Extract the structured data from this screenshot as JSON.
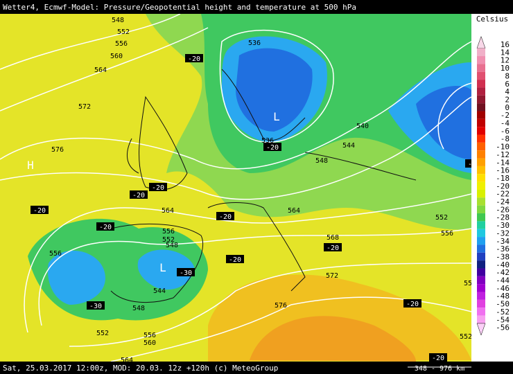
{
  "header": {
    "title": "Wetter4, Ecmwf-Model: Pressure/Geopotential height and temperature at 500 hPa"
  },
  "footer": {
    "info": "Sat, 25.03.2017 12:00z, MOD: 20.03. 12z +120h (c) MeteoGroup",
    "scale": "348 - 976 km"
  },
  "legend": {
    "unit": "Celsius",
    "levels": [
      16,
      14,
      12,
      10,
      8,
      6,
      4,
      2,
      0,
      -2,
      -4,
      -6,
      -8,
      -10,
      -12,
      -14,
      -16,
      -18,
      -20,
      -22,
      -24,
      -26,
      -28,
      -30,
      -32,
      -34,
      -36,
      -38,
      -40,
      -42,
      -44,
      -46,
      -48,
      -50,
      -52,
      -54,
      -56
    ],
    "colors": [
      "#f8d8e8",
      "#f0b0c8",
      "#f090b0",
      "#e87090",
      "#e05070",
      "#d03050",
      "#b02040",
      "#901830",
      "#701020",
      "#a00000",
      "#c00000",
      "#e00000",
      "#ff3000",
      "#ff6000",
      "#ff8000",
      "#ffa000",
      "#ffc000",
      "#ffe000",
      "#f0f000",
      "#d8f000",
      "#a8e030",
      "#80d840",
      "#40c850",
      "#20d0a0",
      "#20c8e0",
      "#20a0f0",
      "#2070e0",
      "#2040c0",
      "#102080",
      "#4000a0",
      "#8000c0",
      "#a000d0",
      "#c020e0",
      "#e040e0",
      "#f070f0",
      "#f8a0f0",
      "#fcd0f8"
    ]
  },
  "map": {
    "height_labels": [
      548,
      552,
      556,
      560,
      564,
      572,
      576,
      536,
      536,
      540,
      544,
      548,
      564,
      564,
      556,
      552,
      548,
      556,
      544,
      548,
      552,
      556,
      560,
      564,
      568,
      572,
      576,
      552,
      556,
      55,
      552
    ],
    "temperature_labels": [
      -20,
      -20,
      -20,
      -20,
      -20,
      -20,
      -20,
      -30,
      -30,
      -20,
      -20,
      -20,
      -20,
      -30
    ],
    "pressure_centers": [
      "H",
      "L",
      "L"
    ]
  }
}
